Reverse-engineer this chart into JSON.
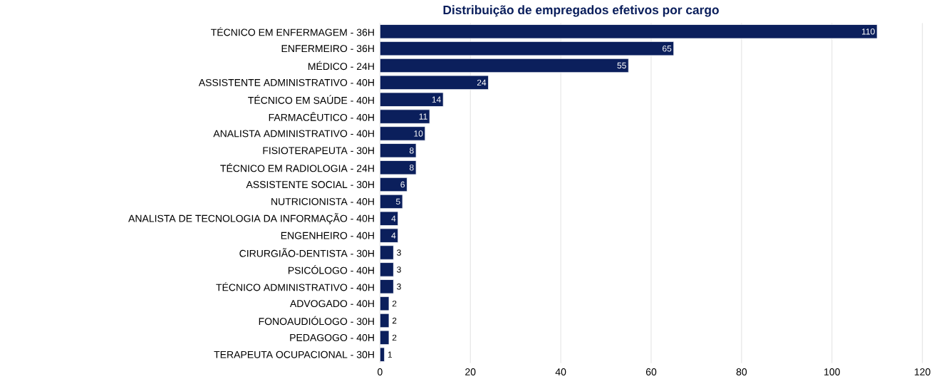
{
  "chart_data": {
    "type": "bar",
    "orientation": "horizontal",
    "title": "Distribuição de empregados efetivos por cargo",
    "categories": [
      "TÉCNICO EM ENFERMAGEM - 36H",
      "ENFERMEIRO - 36H",
      "MÉDICO - 24H",
      "ASSISTENTE ADMINISTRATIVO - 40H",
      "TÉCNICO EM SAÚDE - 40H",
      "FARMACÊUTICO - 40H",
      "ANALISTA ADMINISTRATIVO - 40H",
      "FISIOTERAPEUTA - 30H",
      "TÉCNICO EM RADIOLOGIA - 24H",
      "ASSISTENTE SOCIAL - 30H",
      "NUTRICIONISTA - 40H",
      "ANALISTA DE TECNOLOGIA DA INFORMAÇÃO - 40H",
      "ENGENHEIRO - 40H",
      "CIRURGIÃO-DENTISTA - 30H",
      "PSICÓLOGO - 40H",
      "TÉCNICO ADMINISTRATIVO - 40H",
      "ADVOGADO - 40H",
      "FONOAUDIÓLOGO - 30H",
      "PEDAGOGO - 40H",
      "TERAPEUTA OCUPACIONAL - 30H"
    ],
    "values": [
      110,
      65,
      55,
      24,
      14,
      11,
      10,
      8,
      8,
      6,
      5,
      4,
      4,
      3,
      3,
      3,
      2,
      2,
      2,
      1
    ],
    "color": "#0b1f5c",
    "xlim": [
      0,
      120
    ],
    "xticks": [
      0,
      20,
      40,
      60,
      80,
      100,
      120
    ],
    "grid": "x",
    "data_labels": true
  }
}
